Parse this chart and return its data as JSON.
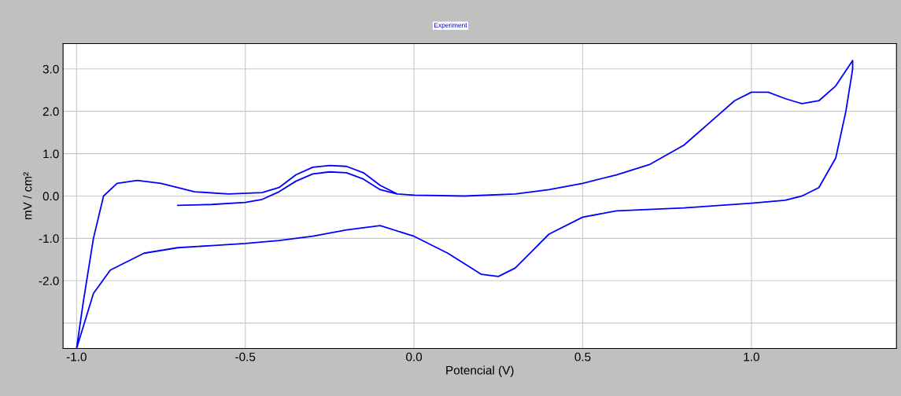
{
  "chart_data": {
    "type": "line",
    "title": "Experiment",
    "xlabel": "Potencial (V)",
    "ylabel": "mV / cm²",
    "xlim": [
      -1.04,
      1.43
    ],
    "ylim": [
      -3.6,
      3.6
    ],
    "xticks": [
      {
        "value": -1.0,
        "label": "-1.0"
      },
      {
        "value": -0.5,
        "label": "-0.5"
      },
      {
        "value": 0.0,
        "label": "0.0"
      },
      {
        "value": 0.5,
        "label": "0.5"
      },
      {
        "value": 1.0,
        "label": "1.0"
      }
    ],
    "yticks": [
      {
        "value": -3.0,
        "label": null
      },
      {
        "value": -2.0,
        "label": "-2.0"
      },
      {
        "value": -1.0,
        "label": "-1.0"
      },
      {
        "value": 0.0,
        "label": "0.0"
      },
      {
        "value": 1.0,
        "label": "1.0"
      },
      {
        "value": 2.0,
        "label": "2.0"
      },
      {
        "value": 3.0,
        "label": "3.0"
      }
    ],
    "grid": true,
    "marker": "none",
    "line_style": "solid",
    "series": [
      {
        "color": "#0000ff",
        "x": [
          -0.7,
          -0.6,
          -0.5,
          -0.45,
          -0.4,
          -0.35,
          -0.3,
          -0.25,
          -0.2,
          -0.15,
          -0.1,
          -0.05,
          0.0,
          0.15,
          0.3,
          0.4,
          0.5,
          0.6,
          0.7,
          0.8,
          0.9,
          0.95,
          1.0,
          1.05,
          1.1,
          1.15,
          1.2,
          1.25,
          1.3,
          1.3,
          1.28,
          1.25,
          1.2,
          1.15,
          1.1,
          1.0,
          0.8,
          0.6,
          0.5,
          0.4,
          0.35,
          0.3,
          0.25,
          0.2,
          0.1,
          0.0,
          -0.1,
          -0.2,
          -0.3,
          -0.4,
          -0.5,
          -0.6,
          -0.7,
          -0.8,
          -0.9,
          -0.95,
          -1.0,
          -0.98,
          -0.95,
          -0.92,
          -0.88,
          -0.82,
          -0.75,
          -0.65,
          -0.55,
          -0.45,
          -0.4,
          -0.35,
          -0.3,
          -0.25,
          -0.2,
          -0.15,
          -0.1,
          -0.05,
          0.0
        ],
        "values": [
          -0.22,
          -0.2,
          -0.15,
          -0.08,
          0.1,
          0.35,
          0.52,
          0.57,
          0.55,
          0.4,
          0.15,
          0.05,
          0.02,
          0.0,
          0.05,
          0.15,
          0.3,
          0.5,
          0.75,
          1.2,
          1.9,
          2.25,
          2.45,
          2.45,
          2.3,
          2.18,
          2.25,
          2.6,
          3.2,
          3.0,
          2.0,
          0.9,
          0.2,
          0.0,
          -0.1,
          -0.17,
          -0.28,
          -0.35,
          -0.5,
          -0.9,
          -1.3,
          -1.7,
          -1.9,
          -1.85,
          -1.35,
          -0.95,
          -0.7,
          -0.8,
          -0.95,
          -1.05,
          -1.12,
          -1.17,
          -1.22,
          -1.35,
          -1.75,
          -2.3,
          -3.6,
          -2.5,
          -1.0,
          0.0,
          0.3,
          0.37,
          0.3,
          0.1,
          0.05,
          0.08,
          0.2,
          0.5,
          0.68,
          0.72,
          0.7,
          0.55,
          0.25,
          0.05,
          0.02
        ]
      }
    ]
  }
}
